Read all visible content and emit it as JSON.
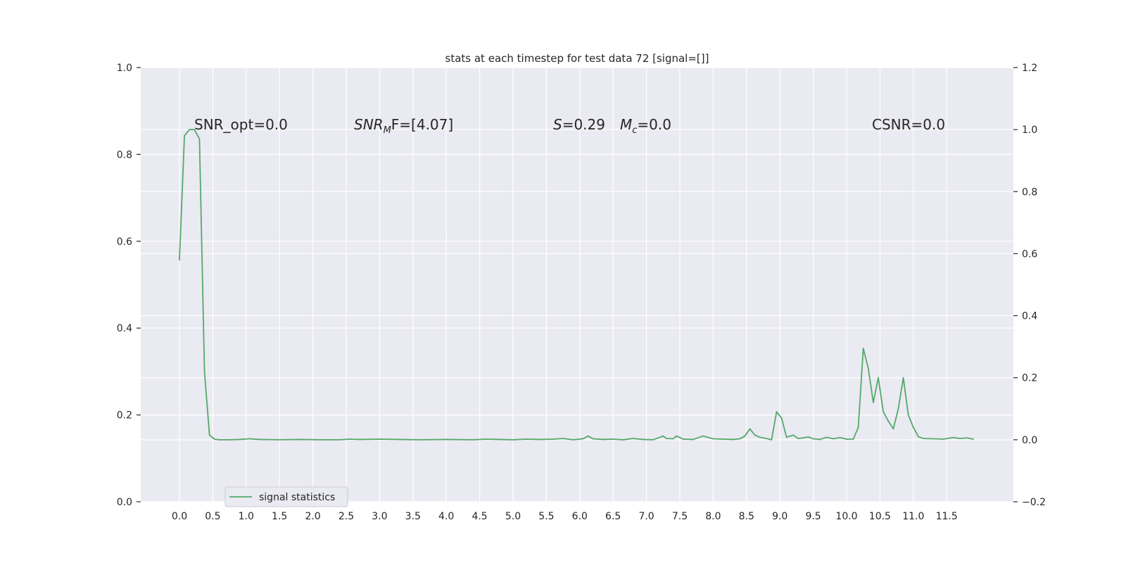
{
  "chart_data": {
    "type": "line",
    "title": "stats at each timestep for test data 72 [signal=[]]",
    "xlabel": "",
    "ylabel": "",
    "y2label": "",
    "xlim": [
      -0.58,
      12.5
    ],
    "ylim": [
      0.0,
      1.0
    ],
    "y2lim": [
      -0.2,
      1.2
    ],
    "x_ticks": [
      "0.0",
      "0.5",
      "1.0",
      "1.5",
      "2.0",
      "2.5",
      "3.0",
      "3.5",
      "4.0",
      "4.5",
      "5.0",
      "5.5",
      "6.0",
      "6.5",
      "7.0",
      "7.5",
      "8.0",
      "8.5",
      "9.0",
      "9.5",
      "10.0",
      "10.5",
      "11.0",
      "11.5"
    ],
    "y_ticks": [
      "0.0",
      "0.2",
      "0.4",
      "0.6",
      "0.8",
      "1.0"
    ],
    "y2_ticks": [
      "−0.2",
      "0.0",
      "0.2",
      "0.4",
      "0.6",
      "0.8",
      "1.0",
      "1.2"
    ],
    "grid": true,
    "legend_position": "lower-left",
    "series": [
      {
        "name": "signal statistics",
        "color": "#55a868",
        "axis": "right",
        "x": [
          0.0,
          0.075,
          0.15,
          0.225,
          0.3,
          0.375,
          0.45,
          0.525,
          0.6,
          0.75,
          0.9,
          1.05,
          1.2,
          1.5,
          1.8,
          2.1,
          2.4,
          2.55,
          2.7,
          3.0,
          3.3,
          3.6,
          4.0,
          4.4,
          4.6,
          4.8,
          5.0,
          5.2,
          5.4,
          5.6,
          5.75,
          5.9,
          6.05,
          6.125,
          6.2,
          6.35,
          6.5,
          6.65,
          6.8,
          6.95,
          7.1,
          7.25,
          7.3,
          7.4,
          7.45,
          7.55,
          7.7,
          7.85,
          8.0,
          8.15,
          8.3,
          8.4,
          8.475,
          8.55,
          8.625,
          8.7,
          8.8,
          8.875,
          8.95,
          9.025,
          9.1,
          9.2,
          9.275,
          9.35,
          9.425,
          9.5,
          9.6,
          9.7,
          9.8,
          9.9,
          10.0,
          10.1,
          10.175,
          10.25,
          10.325,
          10.4,
          10.475,
          10.55,
          10.625,
          10.7,
          10.775,
          10.85,
          10.925,
          11.0,
          11.075,
          11.15,
          11.3,
          11.45,
          11.6,
          11.7,
          11.8,
          11.9
        ],
        "values": [
          0.58,
          0.98,
          1.0,
          1.0,
          0.97,
          0.22,
          0.015,
          0.002,
          0.0,
          0.0,
          0.001,
          0.003,
          0.001,
          0.0,
          0.001,
          0.0,
          0.0,
          0.002,
          0.001,
          0.002,
          0.001,
          0.0,
          0.001,
          0.0,
          0.002,
          0.001,
          0.0,
          0.002,
          0.001,
          0.002,
          0.004,
          0.0,
          0.003,
          0.012,
          0.003,
          0.001,
          0.002,
          0.0,
          0.004,
          0.001,
          0.0,
          0.012,
          0.004,
          0.003,
          0.012,
          0.002,
          0.001,
          0.012,
          0.003,
          0.002,
          0.001,
          0.003,
          0.012,
          0.035,
          0.015,
          0.008,
          0.004,
          0.0,
          0.09,
          0.07,
          0.008,
          0.015,
          0.004,
          0.006,
          0.009,
          0.003,
          0.001,
          0.008,
          0.003,
          0.007,
          0.002,
          0.002,
          0.04,
          0.295,
          0.23,
          0.12,
          0.2,
          0.09,
          0.06,
          0.035,
          0.1,
          0.2,
          0.08,
          0.04,
          0.01,
          0.004,
          0.003,
          0.002,
          0.007,
          0.004,
          0.006,
          0.002
        ]
      }
    ],
    "annotations": [
      {
        "id": "snr_opt",
        "text": "SNR_opt=0.0"
      },
      {
        "id": "snr_mf_base",
        "text": "SNR"
      },
      {
        "id": "snr_mf_sub",
        "text": "M"
      },
      {
        "id": "snr_mf_tail",
        "text": "F=[4.07]"
      },
      {
        "id": "s_var",
        "text": "S"
      },
      {
        "id": "s_val",
        "text": "=0.29"
      },
      {
        "id": "mc_var",
        "text": "M"
      },
      {
        "id": "mc_sub",
        "text": "c"
      },
      {
        "id": "mc_val",
        "text": "=0.0"
      },
      {
        "id": "csnr",
        "text": "CSNR=0.0"
      }
    ]
  }
}
